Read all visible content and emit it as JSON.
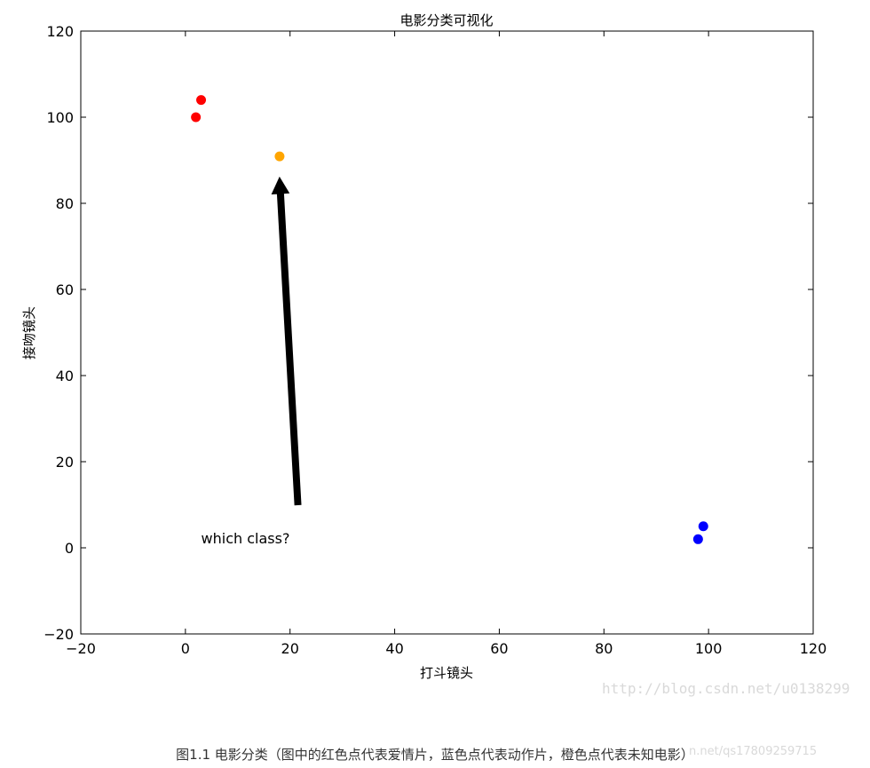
{
  "chart_data": {
    "type": "scatter",
    "title": "电影分类可视化",
    "xlabel": "打斗镜头",
    "ylabel": "接吻镜头",
    "xlim": [
      -20,
      120
    ],
    "ylim": [
      -20,
      120
    ],
    "xticks": [
      "−20",
      "0",
      "20",
      "40",
      "60",
      "80",
      "100",
      "120"
    ],
    "yticks": [
      "−20",
      "0",
      "20",
      "40",
      "60",
      "80",
      "100",
      "120"
    ],
    "grid": false,
    "points": [
      {
        "x": 3,
        "y": 104,
        "color": "#ff0000"
      },
      {
        "x": 2,
        "y": 100,
        "color": "#ff0000"
      },
      {
        "x": 99,
        "y": 5,
        "color": "#0000ff"
      },
      {
        "x": 98,
        "y": 2,
        "color": "#0000ff"
      },
      {
        "x": 18,
        "y": 90.9,
        "color": "#ffa500"
      }
    ],
    "annotation": {
      "text": "which class?",
      "text_xy": [
        3,
        1
      ],
      "arrow_from": [
        21.5,
        10
      ],
      "arrow_to": [
        18,
        86
      ]
    }
  },
  "watermark": "http://blog.csdn.net/u0138299",
  "caption": "图1.1 电影分类（图中的红色点代表爱情片，蓝色点代表动作片，橙色点代表未知电影）",
  "caption_watermark": "n.net/qs17809259715"
}
